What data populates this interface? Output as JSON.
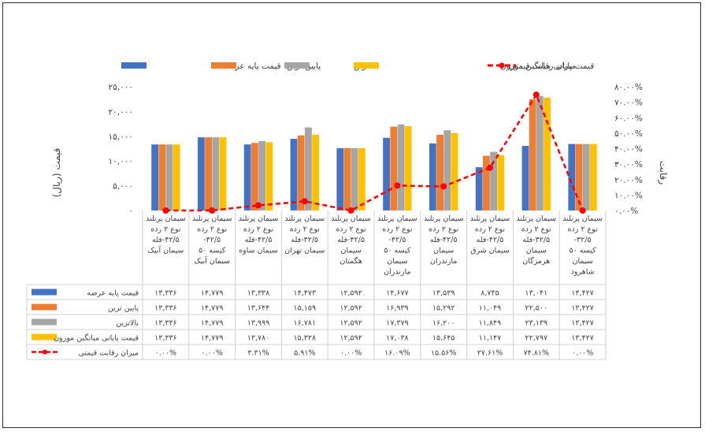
{
  "chart_data": {
    "type": "bar",
    "categories": [
      "سیمان پرتلند نوع ۲ رده ۴۲/۵-فله سیمان آبیک",
      "سیمان پرتلند نوع ۲ رده ۴۲/۵- کیسه ۵۰ سیمان آبیک",
      "سیمان پرتلند نوع ۲ رده ۴۲/۵-فله سیمان ساوه",
      "سیمان پرتلند نوع ۲ رده ۳۲/۵-فله سیمان تهران",
      "سیمان پرتلند نوع ۲ رده ۴۲/۵-فله سیمان هگمتان",
      "سیمان پرتلند نوع ۲ رده ۴۲/۵- کیسه ۵۰ سیمان مازندران",
      "سیمان پرتلند نوع ۲ رده ۴۲/۵-فله سیمان مازندران",
      "سیمان پرتلند نوع ۲ رده ۴۲/۵-فله سیمان شرق",
      "سیمان پرتلند نوع ۲ رده ۳۲/۵-فله سیمان هرمزگان",
      "سیمان پرتلند نوع ۲ رده ۳۲/۵- کیسه ۵۰ سیمان شاهرود"
    ],
    "category_lines": [
      [
        "سیمان پرتلند",
        "نوع ۲ رده",
        "۴۲/۵-فله",
        "سیمان آبیک"
      ],
      [
        "سیمان پرتلند",
        "نوع ۲ رده",
        "۴۲/۵-",
        "کیسه ۵۰",
        "سیمان آبیک"
      ],
      [
        "سیمان پرتلند",
        "نوع ۲ رده",
        "۴۲/۵-فله",
        "سیمان ساوه"
      ],
      [
        "سیمان پرتلند",
        "نوع ۲ رده",
        "۳۲/۵-فله",
        "سیمان تهران"
      ],
      [
        "سیمان پرتلند",
        "نوع ۲ رده",
        "۴۲/۵-فله",
        "سیمان",
        "هگمتان"
      ],
      [
        "سیمان پرتلند",
        "نوع ۲ رده",
        "۴۲/۵-",
        "کیسه ۵۰",
        "سیمان",
        "مازندران"
      ],
      [
        "سیمان پرتلند",
        "نوع ۲ رده",
        "۴۲/۵-فله",
        "سیمان",
        "مازندران"
      ],
      [
        "سیمان پرتلند",
        "نوع ۲ رده",
        "۴۲/۵-فله",
        "سیمان شرق"
      ],
      [
        "سیمان پرتلند",
        "نوع ۲ رده",
        "۳۲/۵-فله",
        "سیمان",
        "هرمزگان"
      ],
      [
        "سیمان پرتلند",
        "نوع ۲ رده",
        "۳۲/۵-",
        "کیسه ۵۰",
        "سیمان",
        "شاهرود"
      ]
    ],
    "series": [
      {
        "name": "قیمت پایه عرضه",
        "color": "#4472C4",
        "values": [
          13336,
          14779,
          13338,
          14473,
          12592,
          14677,
          13539,
          8735,
          13041,
          13427
        ],
        "labels": [
          "۱۳,۳۳۶",
          "۱۴,۷۷۹",
          "۱۳,۳۳۸",
          "۱۴,۴۷۳",
          "۱۲,۵۹۲",
          "۱۴,۶۷۷",
          "۱۳,۵۳۹",
          "۸,۷۳۵",
          "۱۳,۰۴۱",
          "۱۳,۴۲۷"
        ]
      },
      {
        "name": "پایین ترین",
        "color": "#ED7D31",
        "values": [
          13336,
          14779,
          13644,
          15159,
          12592,
          16939,
          15292,
          11049,
          22500,
          13427
        ],
        "labels": [
          "۱۳,۳۳۶",
          "۱۴,۷۷۹",
          "۱۳,۶۴۴",
          "۱۵,۱۵۹",
          "۱۲,۵۹۲",
          "۱۶,۹۳۹",
          "۱۵,۲۹۲",
          "۱۱,۰۴۹",
          "۲۲,۵۰۰",
          "۱۳,۴۲۷"
        ]
      },
      {
        "name": "بالاترین",
        "color": "#A5A5A5",
        "values": [
          13336,
          14779,
          13999,
          16781,
          12592,
          17379,
          16200,
          11849,
          23139,
          13427
        ],
        "labels": [
          "۱۳,۳۳۶",
          "۱۴,۷۷۹",
          "۱۳,۹۹۹",
          "۱۶,۷۸۱",
          "۱۲,۵۹۲",
          "۱۷,۳۷۹",
          "۱۶,۲۰۰",
          "۱۱,۸۴۹",
          "۲۳,۱۳۹",
          "۱۳,۴۲۷"
        ]
      },
      {
        "name": "قیمت پایانی میانگین موزون",
        "color": "#FFC000",
        "values": [
          13336,
          14779,
          13780,
          15328,
          12592,
          17038,
          15645,
          11147,
          22797,
          13427
        ],
        "labels": [
          "۱۳,۳۳۶",
          "۱۴,۷۷۹",
          "۱۳,۷۸۰",
          "۱۵,۳۲۸",
          "۱۲,۵۹۲",
          "۱۷,۰۳۸",
          "۱۵,۶۴۵",
          "۱۱,۱۴۷",
          "۲۲,۷۹۷",
          "۱۳,۴۲۷"
        ]
      },
      {
        "name": "میزان رقابت قیمتی",
        "color": "#FF0000",
        "type": "line",
        "axis": "right",
        "values": [
          0.0,
          0.0,
          3.31,
          5.91,
          0.0,
          16.09,
          15.56,
          27.61,
          74.81,
          0.0
        ],
        "labels": [
          "۰.۰۰%",
          "۰.۰۰%",
          "۳.۳۱%",
          "۵.۹۱%",
          "۰.۰۰%",
          "۱۶.۰۹%",
          "۱۵.۵۶%",
          "۲۷.۶۱%",
          "۷۴.۸۱%",
          "۰.۰۰%"
        ]
      }
    ],
    "ylabel": "قیمت (ریال)",
    "y2label": "رقابت",
    "ylim": [
      0,
      25000
    ],
    "y2lim": [
      0,
      80
    ],
    "yticks": [
      "۰",
      "۵,۰۰۰",
      "۱۰,۰۰۰",
      "۱۵,۰۰۰",
      "۲۰,۰۰۰",
      "۲۵,۰۰۰"
    ],
    "y2ticks": [
      "۰.۰۰%",
      "۱۰.۰۰%",
      "۲۰.۰۰%",
      "۳۰.۰۰%",
      "۴۰.۰۰%",
      "۵۰.۰۰%",
      "۶۰.۰۰%",
      "۷۰.۰۰%",
      "۸۰.۰۰%"
    ],
    "legend_position": "top",
    "data_table": true,
    "grid": false
  }
}
